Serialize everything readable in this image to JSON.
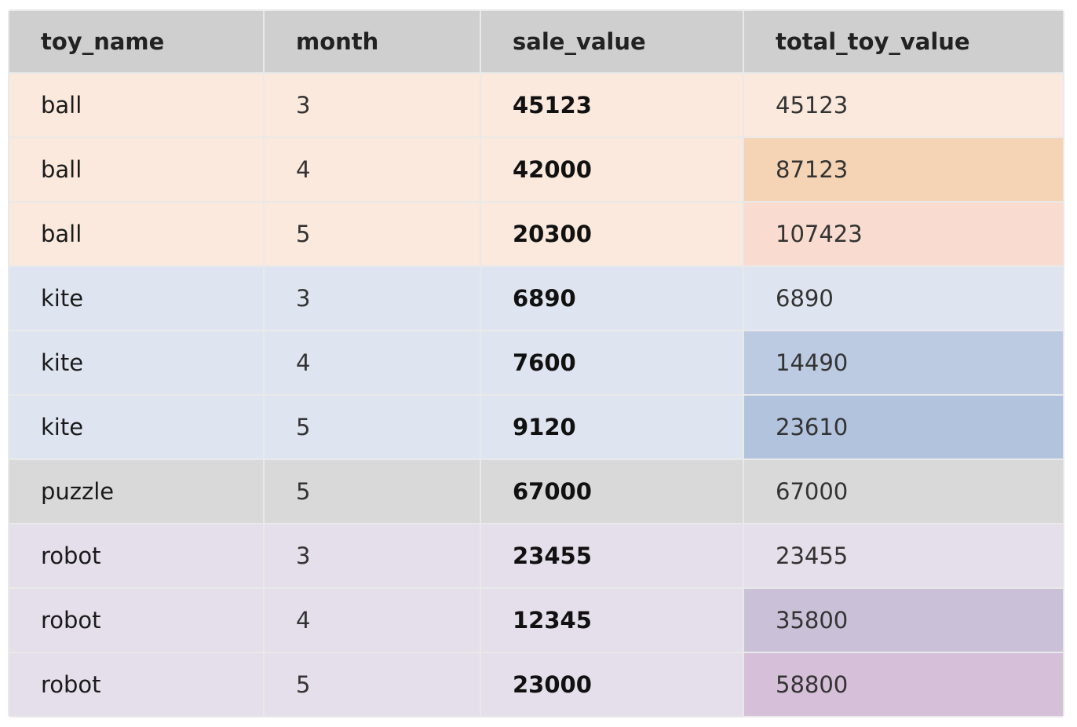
{
  "table": {
    "headers": [
      "toy_name",
      "month",
      "sale_value",
      "total_toy_value"
    ],
    "rows": [
      {
        "toy_name": "ball",
        "month": "3",
        "sale_value": "45123",
        "total_toy_value": "45123",
        "row_color": "#fae9dc",
        "total_color": "#fae9dc"
      },
      {
        "toy_name": "ball",
        "month": "4",
        "sale_value": "42000",
        "total_toy_value": "87123",
        "row_color": "#fae9dc",
        "total_color": "#f4d4b4"
      },
      {
        "toy_name": "ball",
        "month": "5",
        "sale_value": "20300",
        "total_toy_value": "107423",
        "row_color": "#fae9dc",
        "total_color": "#f9dccf"
      },
      {
        "toy_name": "kite",
        "month": "3",
        "sale_value": "6890",
        "total_toy_value": "6890",
        "row_color": "#dfe5f0",
        "total_color": "#dfe5f0"
      },
      {
        "toy_name": "kite",
        "month": "4",
        "sale_value": "7600",
        "total_toy_value": "14490",
        "row_color": "#dfe5f0",
        "total_color": "#bccbe2"
      },
      {
        "toy_name": "kite",
        "month": "5",
        "sale_value": "9120",
        "total_toy_value": "23610",
        "row_color": "#dfe5f0",
        "total_color": "#b2c3dd"
      },
      {
        "toy_name": "puzzle",
        "month": "5",
        "sale_value": "67000",
        "total_toy_value": "67000",
        "row_color": "#d9d9d9",
        "total_color": "#d9d9d9"
      },
      {
        "toy_name": "robot",
        "month": "3",
        "sale_value": "23455",
        "total_toy_value": "23455",
        "row_color": "#e4dfeb",
        "total_color": "#e4dfeb"
      },
      {
        "toy_name": "robot",
        "month": "4",
        "sale_value": "12345",
        "total_toy_value": "35800",
        "row_color": "#e4dfeb",
        "total_color": "#cac1d8"
      },
      {
        "toy_name": "robot",
        "month": "5",
        "sale_value": "23000",
        "total_toy_value": "58800",
        "row_color": "#e4dfeb",
        "total_color": "#d6bfd8"
      }
    ]
  }
}
